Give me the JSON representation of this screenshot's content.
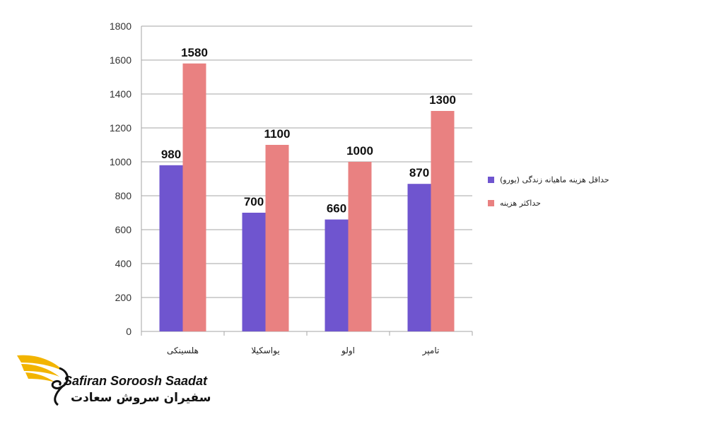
{
  "chart_data": {
    "type": "bar",
    "categories": [
      "هلسینکی",
      "یواسکیلا",
      "اولو",
      "تامپر"
    ],
    "series": [
      {
        "name": "حداقل هزینه ماهیانه زندگی (یورو)",
        "values": [
          980,
          700,
          660,
          870
        ],
        "color": "#6f55cf"
      },
      {
        "name": "حداکثر هزینه",
        "values": [
          1580,
          1100,
          1000,
          1300
        ],
        "color": "#e98181"
      }
    ],
    "ylim": [
      0,
      1800
    ],
    "yticks": [
      0,
      200,
      400,
      600,
      800,
      1000,
      1200,
      1400,
      1600,
      1800
    ],
    "grid": true,
    "legend": "right",
    "title": "",
    "xlabel": "",
    "ylabel": ""
  },
  "legend": {
    "min_label": "حداقل هزینه ماهیانه زندگی (یورو)",
    "max_label": "حداکثر هزینه"
  },
  "brand": {
    "name_en": "Safiran Soroosh Saadat",
    "name_fa": "سفیران سروش سعادت",
    "accent": "#f2b400"
  }
}
